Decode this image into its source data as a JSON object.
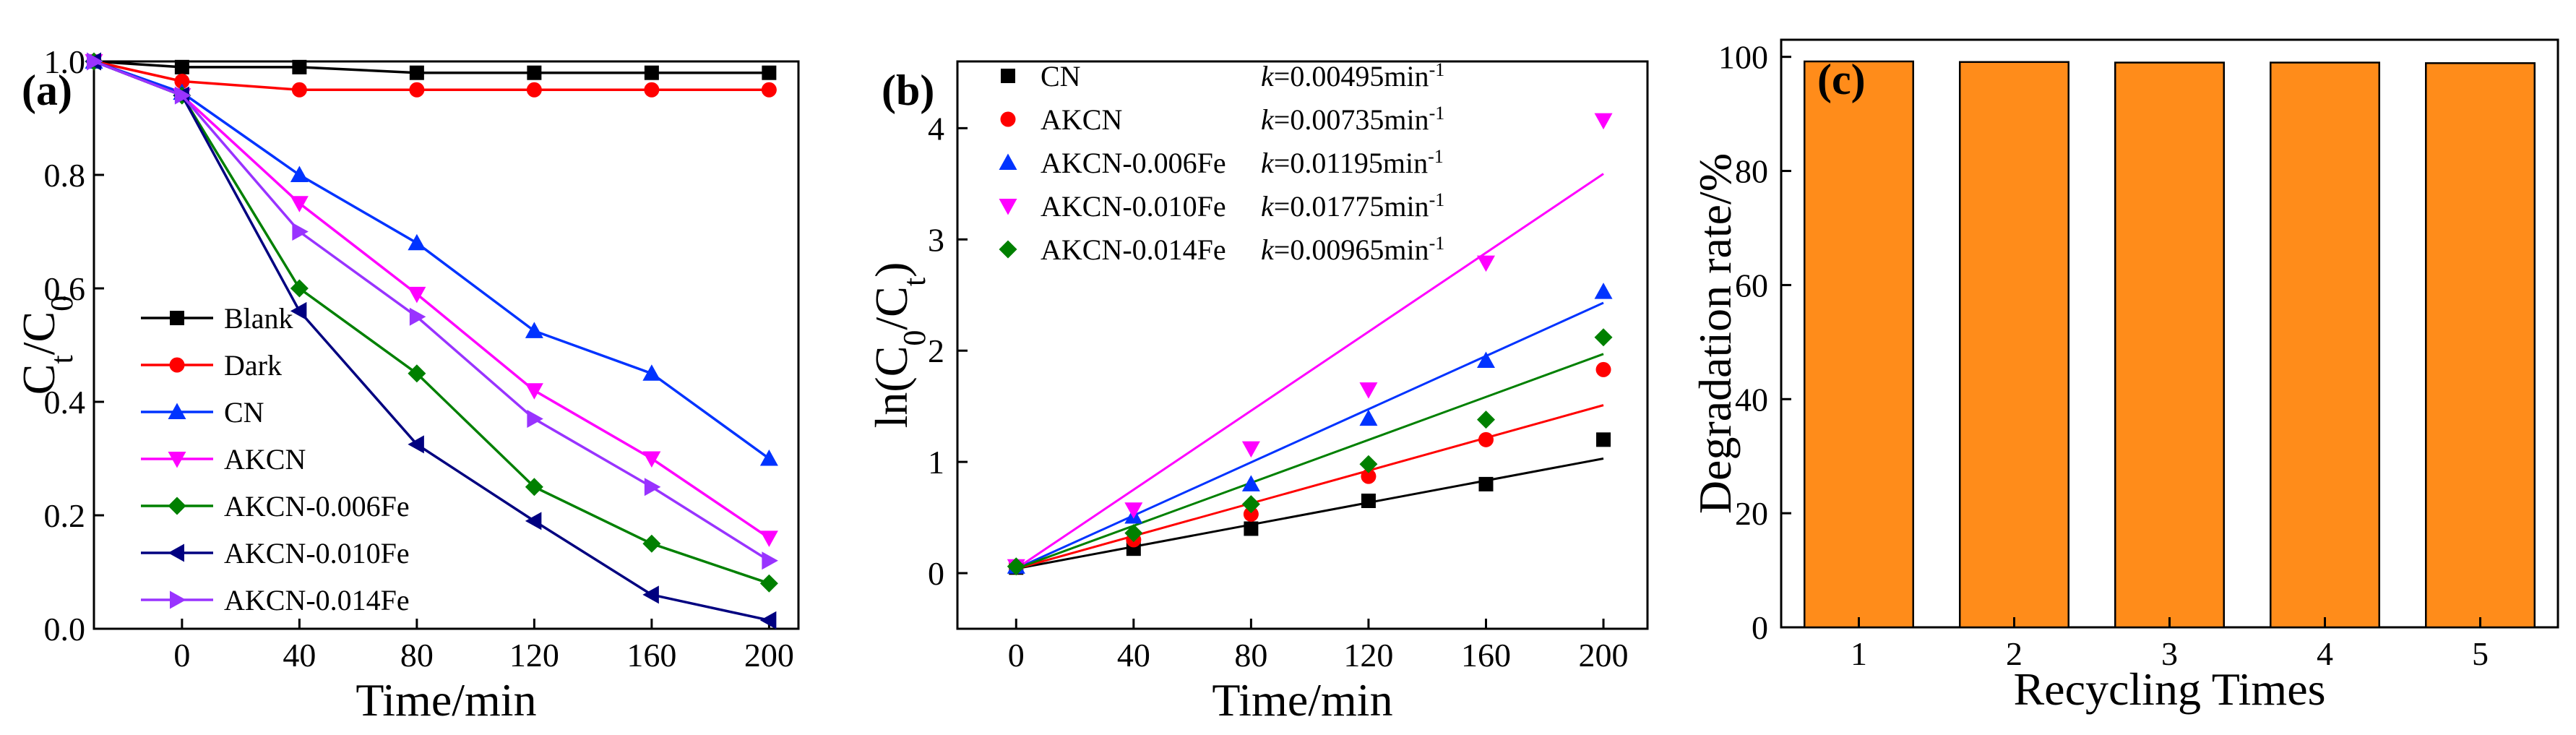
{
  "chart_data": [
    {
      "panel": "(a)",
      "type": "line",
      "xlabel": "Time/min",
      "ylabel_main": "C",
      "ylabel_sub1": "t",
      "ylabel_mid": "/C",
      "ylabel_sub2": "0",
      "xlim": [
        -30,
        210
      ],
      "ylim": [
        0,
        1.0
      ],
      "xticks": [
        0,
        40,
        80,
        120,
        160,
        200
      ],
      "yticks": [
        0.0,
        0.2,
        0.4,
        0.6,
        0.8,
        1.0
      ],
      "ytick_labels": [
        "0.0",
        "0.2",
        "0.4",
        "0.6",
        "0.8",
        "1.0"
      ],
      "legend_position": "bottom-left",
      "series": [
        {
          "name": "Blank",
          "marker": "square",
          "color": "#000000",
          "x": [
            -30,
            0,
            40,
            80,
            120,
            160,
            200
          ],
          "y": [
            1.0,
            0.99,
            0.99,
            0.98,
            0.98,
            0.98,
            0.98
          ]
        },
        {
          "name": "Dark",
          "marker": "circle",
          "color": "#ff0000",
          "x": [
            -30,
            0,
            40,
            80,
            120,
            160,
            200
          ],
          "y": [
            1.0,
            0.965,
            0.95,
            0.95,
            0.95,
            0.95,
            0.95
          ]
        },
        {
          "name": "CN",
          "marker": "triangle-up",
          "color": "#0033ff",
          "x": [
            -30,
            0,
            40,
            80,
            120,
            160,
            200
          ],
          "y": [
            1.0,
            0.945,
            0.8,
            0.68,
            0.525,
            0.45,
            0.3
          ]
        },
        {
          "name": "AKCN",
          "marker": "triangle-down",
          "color": "#ff00ff",
          "x": [
            -30,
            0,
            40,
            80,
            120,
            160,
            200
          ],
          "y": [
            1.0,
            0.94,
            0.75,
            0.59,
            0.42,
            0.3,
            0.16
          ]
        },
        {
          "name": "AKCN-0.006Fe",
          "marker": "diamond",
          "color": "#008000",
          "x": [
            -30,
            0,
            40,
            80,
            120,
            160,
            200
          ],
          "y": [
            1.0,
            0.94,
            0.6,
            0.45,
            0.25,
            0.15,
            0.08
          ]
        },
        {
          "name": "AKCN-0.010Fe",
          "marker": "triangle-left",
          "color": "#000080",
          "x": [
            -30,
            0,
            40,
            80,
            120,
            160,
            200
          ],
          "y": [
            1.0,
            0.94,
            0.56,
            0.325,
            0.19,
            0.06,
            0.015
          ]
        },
        {
          "name": "AKCN-0.014Fe",
          "marker": "triangle-right",
          "color": "#9933ff",
          "x": [
            -30,
            0,
            40,
            80,
            120,
            160,
            200
          ],
          "y": [
            1.0,
            0.94,
            0.7,
            0.55,
            0.37,
            0.25,
            0.12
          ]
        }
      ]
    },
    {
      "panel": "(b)",
      "type": "scatter",
      "xlabel": "Time/min",
      "ylabel_pre": "ln(C",
      "ylabel_sub1": "0",
      "ylabel_mid": "/C",
      "ylabel_sub2": "t",
      "ylabel_post": ")",
      "xlim": [
        -20,
        215
      ],
      "ylim": [
        -0.5,
        4.6
      ],
      "xticks": [
        0,
        40,
        80,
        120,
        160,
        200
      ],
      "yticks": [
        0,
        1,
        2,
        3,
        4
      ],
      "legend_position": "top-left",
      "k_prefix": "k",
      "k_unit_text": "min",
      "k_unit_sup": "-1",
      "series": [
        {
          "name": "CN",
          "marker": "square",
          "color": "#000000",
          "k_value": "=0.00495",
          "x": [
            0,
            40,
            80,
            120,
            160,
            200
          ],
          "y": [
            0.05,
            0.22,
            0.4,
            0.65,
            0.8,
            1.2
          ],
          "fit": {
            "slope": 0.00495,
            "intercept": 0.04
          }
        },
        {
          "name": "AKCN",
          "marker": "circle",
          "color": "#ff0000",
          "k_value": "=0.00735",
          "x": [
            0,
            40,
            80,
            120,
            160,
            200
          ],
          "y": [
            0.06,
            0.3,
            0.53,
            0.87,
            1.2,
            1.83
          ],
          "fit": {
            "slope": 0.00735,
            "intercept": 0.04
          }
        },
        {
          "name": "AKCN-0.006Fe",
          "marker": "triangle-up",
          "color": "#0033ff",
          "k_value": "=0.01195",
          "x": [
            0,
            40,
            80,
            120,
            160,
            200
          ],
          "y": [
            0.06,
            0.51,
            0.8,
            1.39,
            1.91,
            2.53
          ],
          "fit": {
            "slope": 0.01195,
            "intercept": 0.04
          }
        },
        {
          "name": "AKCN-0.010Fe",
          "marker": "triangle-down",
          "color": "#ff00ff",
          "k_value": "=0.01775",
          "x": [
            0,
            40,
            80,
            120,
            160,
            200
          ],
          "y": [
            0.06,
            0.57,
            1.12,
            1.65,
            2.79,
            4.07
          ],
          "fit": {
            "slope": 0.01775,
            "intercept": 0.04
          }
        },
        {
          "name": "AKCN-0.014Fe",
          "marker": "diamond",
          "color": "#008000",
          "k_value": "=0.00965",
          "x": [
            0,
            40,
            80,
            120,
            160,
            200
          ],
          "y": [
            0.06,
            0.36,
            0.62,
            0.98,
            1.38,
            2.12
          ],
          "fit": {
            "slope": 0.00965,
            "intercept": 0.04
          }
        }
      ]
    },
    {
      "panel": "(c)",
      "type": "bar",
      "xlabel": "Recycling Times",
      "ylabel": "Degradation rate/%",
      "ylim": [
        0,
        103
      ],
      "yticks": [
        0,
        20,
        40,
        60,
        80,
        100
      ],
      "categories": [
        "1",
        "2",
        "3",
        "4",
        "5"
      ],
      "values": [
        99.2,
        99.1,
        99.0,
        99.0,
        98.9
      ],
      "bar_color": "#ff8c1a"
    }
  ]
}
